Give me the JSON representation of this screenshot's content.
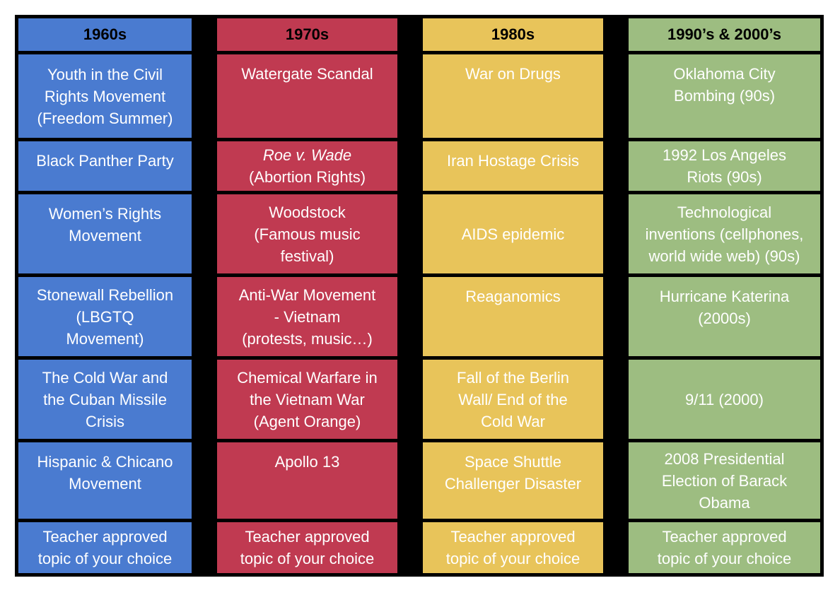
{
  "page": {
    "background": "#ffffff",
    "grid_line_color": "#000000",
    "body_text_color": "#ffffff",
    "header_text_color": "#000000"
  },
  "table": {
    "columns": [
      {
        "id": "1960s",
        "header": "1960s",
        "color": "#4a7bd0",
        "cells": [
          {
            "text": "Youth in the Civil\nRights Movement\n(Freedom Summer)",
            "align": "center"
          },
          {
            "text": "Black Panther Party",
            "align": "top"
          },
          {
            "text": "Women’s Rights\nMovement",
            "align": "top"
          },
          {
            "text": "Stonewall Rebellion\n(LBGTQ\nMovement)",
            "align": "center"
          },
          {
            "text": "The Cold War and\nthe Cuban Missile\nCrisis",
            "align": "center"
          },
          {
            "text": "Hispanic & Chicano\nMovement",
            "align": "top"
          },
          {
            "text": "Teacher approved\ntopic of your choice",
            "align": "center"
          }
        ]
      },
      {
        "id": "1970s",
        "header": "1970s",
        "color": "#c03a51",
        "cells": [
          {
            "text": "Watergate Scandal",
            "align": "top"
          },
          {
            "text": "Roe v. Wade\n(Abortion Rights)",
            "align": "center",
            "italic_line": 0
          },
          {
            "text": "Woodstock\n(Famous music\nfestival)",
            "align": "center"
          },
          {
            "text": "Anti-War Movement\n- Vietnam\n(protests, music…)",
            "align": "center"
          },
          {
            "text": "Chemical Warfare in\nthe Vietnam War\n(Agent Orange)",
            "align": "center"
          },
          {
            "text": "Apollo 13",
            "align": "top"
          },
          {
            "text": "Teacher approved\ntopic of your choice",
            "align": "center"
          }
        ]
      },
      {
        "id": "1980s",
        "header": "1980s",
        "color": "#e8c45a",
        "cells": [
          {
            "text": "War on Drugs",
            "align": "top"
          },
          {
            "text": "Iran Hostage Crisis",
            "align": "top"
          },
          {
            "text": "AIDS epidemic",
            "align": "center"
          },
          {
            "text": "Reaganomics",
            "align": "top"
          },
          {
            "text": "Fall of the Berlin\nWall/ End of the\nCold War",
            "align": "center"
          },
          {
            "text": "Space Shuttle\nChallenger Disaster",
            "align": "top"
          },
          {
            "text": "Teacher approved\ntopic of your choice",
            "align": "center"
          }
        ]
      },
      {
        "id": "1990s-2000s",
        "header": "1990’s & 2000’s",
        "color": "#9dbd81",
        "cells": [
          {
            "text": "Oklahoma City\nBombing (90s)",
            "align": "top"
          },
          {
            "text": "1992 Los Angeles\nRiots (90s)",
            "align": "center"
          },
          {
            "text": "Technological\ninventions (cellphones,\nworld wide web) (90s)",
            "align": "center"
          },
          {
            "text": "Hurricane Katerina\n(2000s)",
            "align": "top"
          },
          {
            "text": "9/11 (2000)",
            "align": "center"
          },
          {
            "text": "2008 Presidential\nElection of Barack\nObama",
            "align": "center"
          },
          {
            "text": "Teacher approved\ntopic of your choice",
            "align": "center"
          }
        ]
      }
    ]
  }
}
